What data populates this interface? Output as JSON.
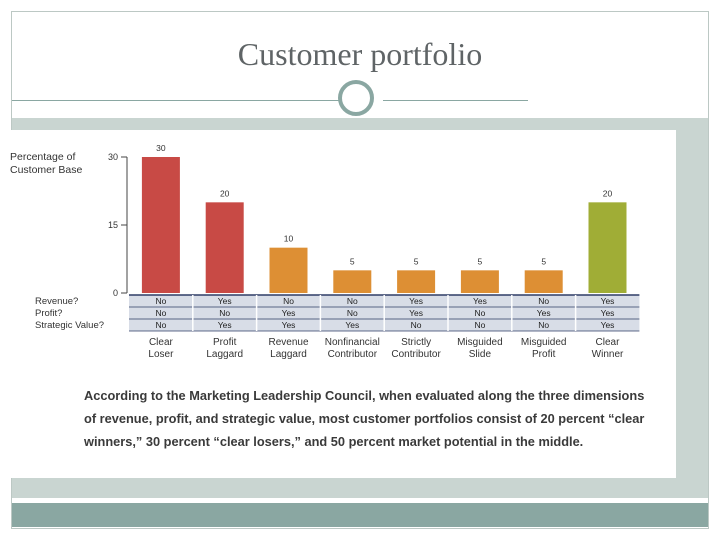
{
  "slide": {
    "title": "Customer portfolio"
  },
  "chart_data": {
    "type": "bar",
    "ylabel": "Percentage of Customer Base",
    "ylim": [
      0,
      30
    ],
    "yticks": [
      "0",
      "15",
      "30"
    ],
    "grid": false,
    "categories": [
      "Clear Loser",
      "Profit Laggard",
      "Revenue Laggard",
      "Nonfinancial Contributor",
      "Strictly Contributor",
      "Misguided Slide",
      "Misguided Profit",
      "Clear Winner"
    ],
    "values": [
      30,
      20,
      10,
      5,
      5,
      5,
      5,
      20
    ],
    "value_labels": [
      "30",
      "20",
      "10",
      "5",
      "5",
      "5",
      "5",
      "20"
    ],
    "colors": [
      "#c84a45",
      "#c84a45",
      "#dd8f34",
      "#dd8f34",
      "#dd8f34",
      "#dd8f34",
      "#dd8f34",
      "#a0ad36"
    ],
    "table": {
      "row_labels": [
        "Revenue?",
        "Profit?",
        "Strategic Value?"
      ],
      "rows": [
        [
          "No",
          "Yes",
          "No",
          "No",
          "Yes",
          "Yes",
          "No",
          "Yes"
        ],
        [
          "No",
          "No",
          "Yes",
          "No",
          "Yes",
          "No",
          "Yes",
          "Yes"
        ],
        [
          "No",
          "Yes",
          "Yes",
          "Yes",
          "No",
          "No",
          "No",
          "Yes"
        ]
      ]
    }
  },
  "caption": "According to the Marketing Leadership Council, when evaluated along the three dimensions of revenue, profit, and strategic value, most customer portfolios consist of 20 percent “clear winners,” 30 percent “clear losers,” and 50 percent market potential in the middle."
}
